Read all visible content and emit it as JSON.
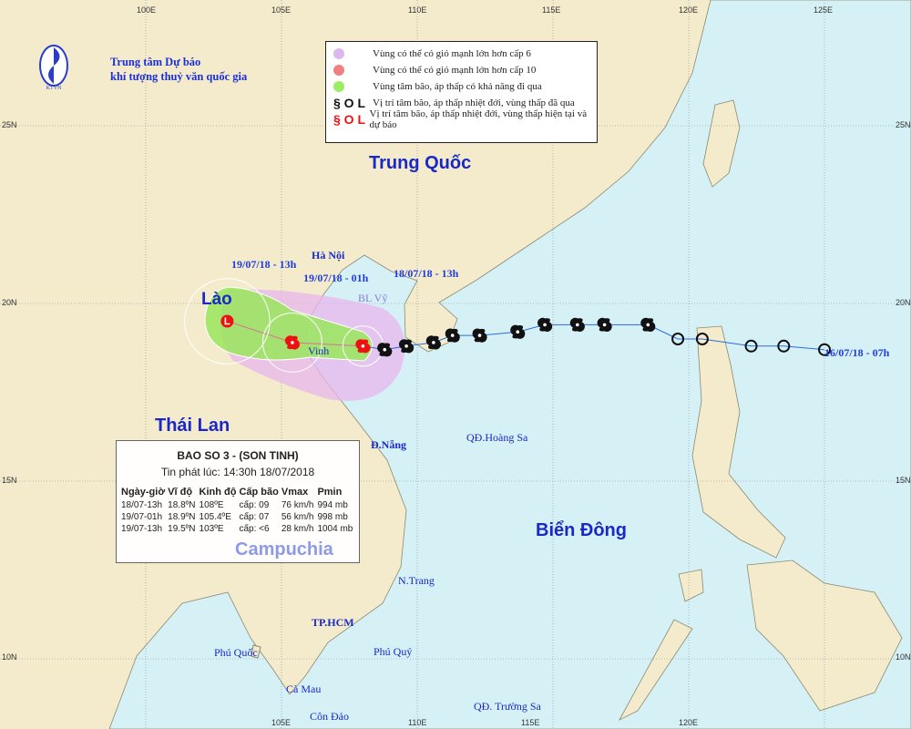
{
  "logo": {
    "line1": "Trung tâm Dự báo",
    "line2": "khí tượng thuỷ văn quốc gia",
    "mark": "KTVN"
  },
  "legend": {
    "items": [
      {
        "symbol": "lilac-circle",
        "color": "#dcb8f0",
        "label": "Vùng có thể có gió mạnh lớn hơn cấp 6"
      },
      {
        "symbol": "red-circle",
        "color": "#f08080",
        "label": "Vùng có thể có gió mạnh lớn hơn cấp 10"
      },
      {
        "symbol": "green-circle",
        "color": "#99ee66",
        "label": "Vùng tâm bão, áp thấp có khả năng đi qua"
      },
      {
        "symbol": "black-storm-icons",
        "color": "#111111",
        "label": "Vị trí tâm bão, áp thấp nhiệt đới, vùng thấp đã qua"
      },
      {
        "symbol": "red-storm-icons",
        "color": "#ee1111",
        "label": "Vị trí tâm bão, áp thấp nhiệt đới, vùng thấp hiện tại và dự báo"
      }
    ]
  },
  "info": {
    "title": "BAO SO 3 - (SON TINH)",
    "issued": "Tin phát lúc: 14:30h 18/07/2018",
    "headers": [
      "Ngày-giờ",
      "Vĩ độ",
      "Kinh độ",
      "Cấp bão",
      "Vmax",
      "Pmin"
    ],
    "rows": [
      [
        "18/07-13h",
        "18.8ºN",
        "108ºE",
        "cấp: 09",
        "76 km/h",
        "994 mb"
      ],
      [
        "19/07-01h",
        "18.9ºN",
        "105.4ºE",
        "cấp: 07",
        "56 km/h",
        "998 mb"
      ],
      [
        "19/07-13h",
        "19.5ºN",
        "103ºE",
        "cấp: <6",
        "28 km/h",
        "1004 mb"
      ]
    ]
  },
  "countries": [
    "Trung Quốc",
    "Lào",
    "Thái Lan",
    "Campuchia",
    "Biển Đông"
  ],
  "places": [
    "Hà Nội",
    "Vinh",
    "BL Vỹ",
    "Đ.Nẵng",
    "QĐ.Hoàng Sa",
    "N.Trang",
    "TP.HCM",
    "Phú Quốc",
    "Phú Quý",
    "Cà Mau",
    "Côn Đảo",
    "QĐ. Trường Sa"
  ],
  "time_labels": [
    "19/07/18 - 13h",
    "19/07/18 - 01h",
    "18/07/18 - 13h",
    "16/07/18 - 07h"
  ],
  "axes": {
    "top": [
      "100E",
      "105E",
      "110E",
      "115E",
      "120E",
      "125E"
    ],
    "bottom": [
      "105E",
      "110E",
      "115E",
      "120E"
    ],
    "left": [
      "25N",
      "20N",
      "15N",
      "10N"
    ],
    "right": [
      "25N",
      "20N",
      "15N",
      "10N"
    ]
  },
  "track": {
    "past": [
      [
        125.0,
        18.7
      ],
      [
        123.5,
        18.8
      ],
      [
        122.3,
        18.8
      ],
      [
        120.5,
        19.0
      ],
      [
        119.6,
        19.0
      ],
      [
        118.5,
        19.4
      ],
      [
        116.9,
        19.4
      ],
      [
        115.9,
        19.4
      ],
      [
        114.7,
        19.4
      ],
      [
        113.7,
        19.2
      ],
      [
        112.3,
        19.1
      ],
      [
        111.3,
        19.1
      ],
      [
        110.6,
        18.9
      ],
      [
        109.6,
        18.8
      ],
      [
        108.8,
        18.7
      ]
    ],
    "past_types": [
      "depression",
      "depression",
      "depression",
      "depression",
      "depression",
      "storm",
      "storm",
      "storm",
      "storm",
      "storm",
      "storm",
      "storm",
      "storm",
      "storm",
      "storm"
    ],
    "current_forecast": [
      [
        108.0,
        18.8,
        "storm"
      ],
      [
        105.4,
        18.9,
        "storm"
      ],
      [
        103.0,
        19.5,
        "low"
      ]
    ],
    "past_color": "#111111",
    "forecast_color": "#ee1111"
  },
  "colors": {
    "sea": "#d6f1f6",
    "land": "#f3ebcc",
    "zone6": "#e8b6ee",
    "zone10": "#f08080",
    "cone": "#99e65c",
    "text_blue": "#1a28c8"
  }
}
